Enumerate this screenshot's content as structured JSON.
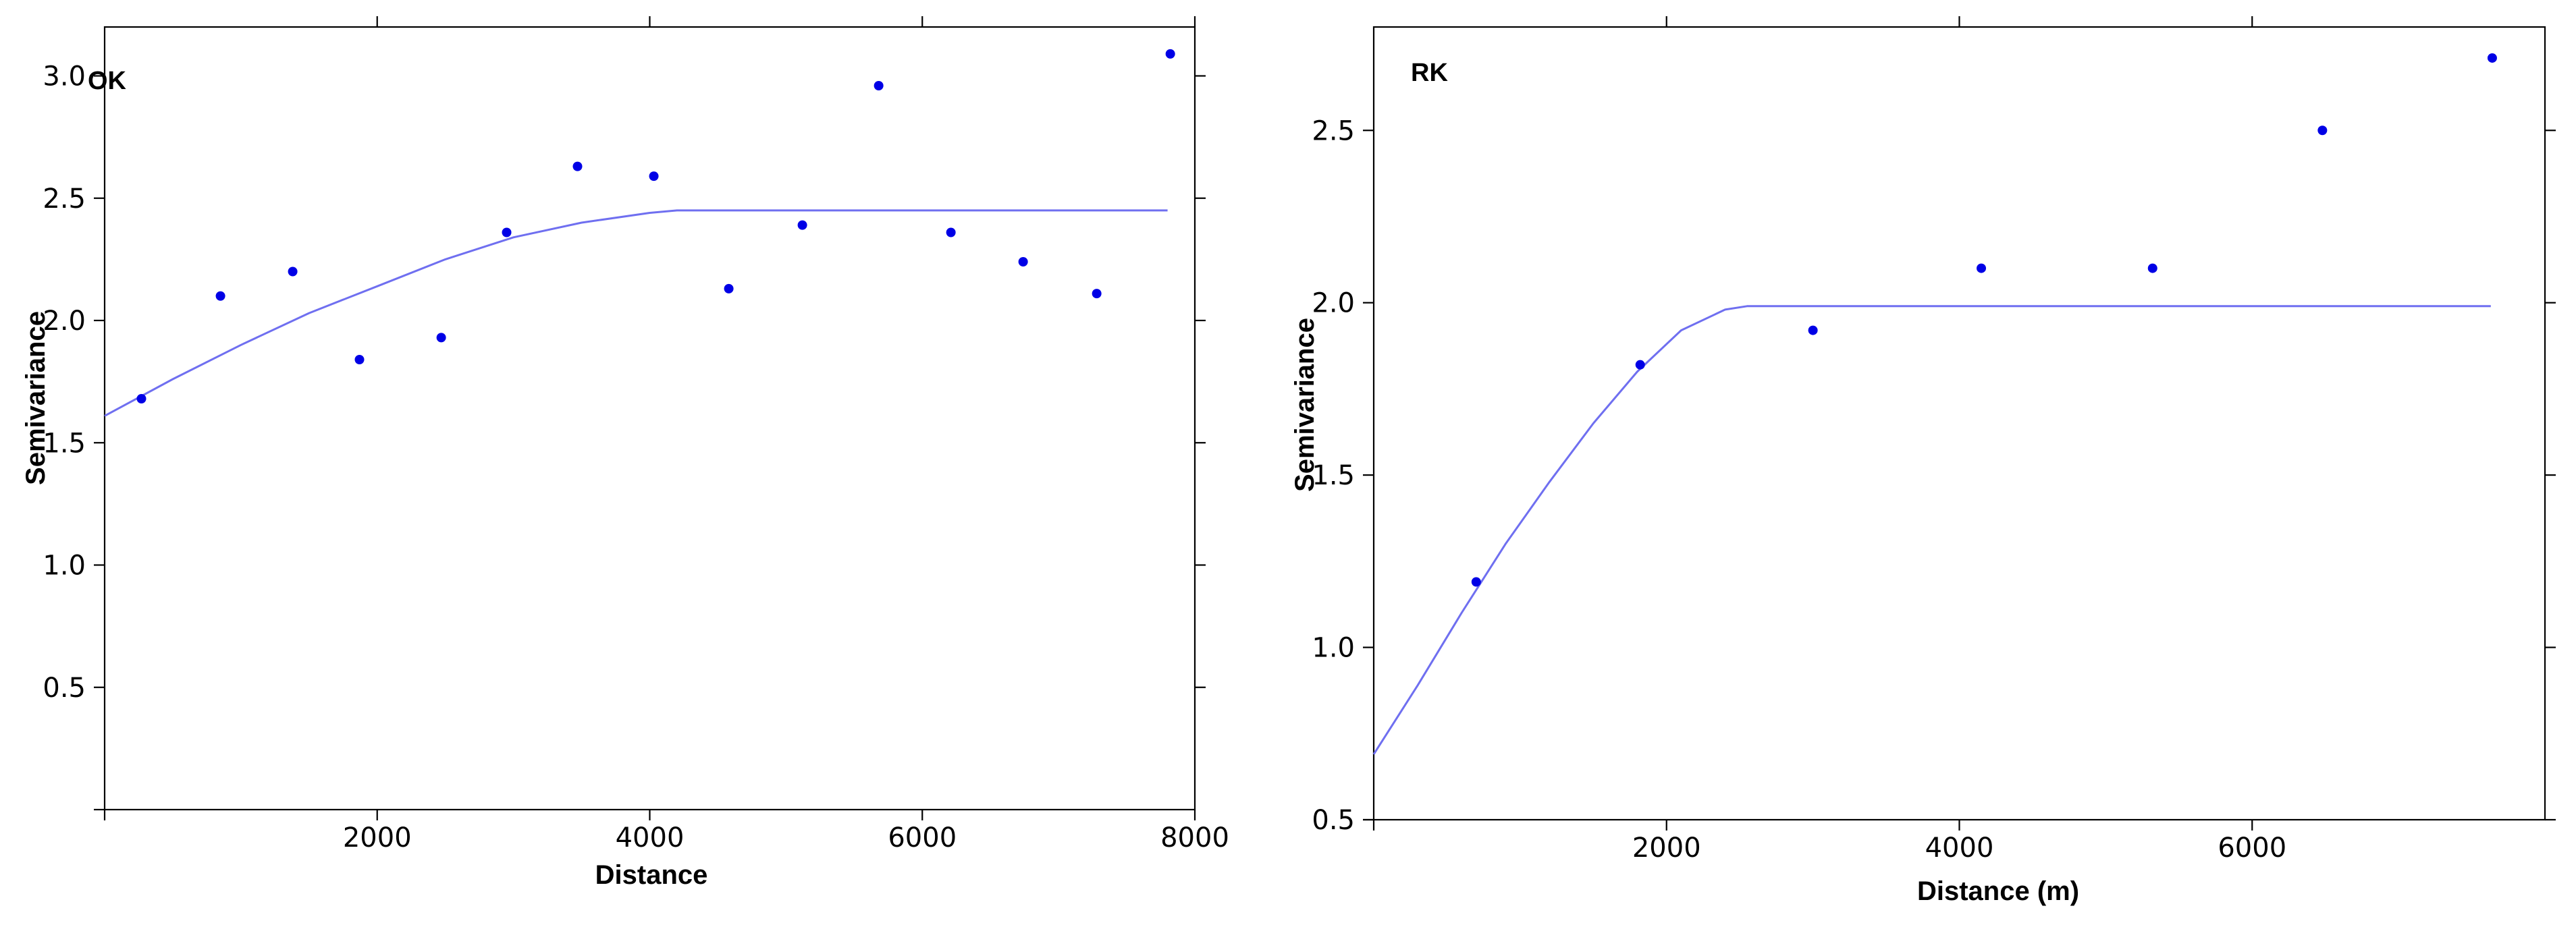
{
  "colors": {
    "line": "#6f6ff0",
    "points": "#0000e6",
    "axes": "#000000"
  },
  "chart_data": [
    {
      "type": "scatter",
      "panel_label": "OK",
      "xlabel": "Distance",
      "ylabel": "Semivariance",
      "xlim": [
        0,
        8000
      ],
      "ylim": [
        0,
        3.2
      ],
      "xticks": [
        2000,
        4000,
        6000,
        8000
      ],
      "xtick_labels": [
        "2000",
        "4000",
        "6000",
        "8000"
      ],
      "yticks": [
        0.5,
        1.0,
        1.5,
        2.0,
        2.5,
        3.0
      ],
      "ytick_labels": [
        "0.5",
        "1.0",
        "1.5",
        "2.0",
        "2.5",
        "3.0"
      ],
      "grid": false,
      "series": [
        {
          "kind": "points",
          "x": [
            270,
            850,
            1380,
            1870,
            2470,
            2950,
            3470,
            4030,
            4580,
            5120,
            5680,
            6210,
            6740,
            7280,
            7820
          ],
          "y": [
            1.68,
            2.1,
            2.2,
            1.84,
            1.93,
            2.36,
            2.63,
            2.59,
            2.13,
            2.39,
            2.96,
            2.36,
            2.24,
            2.11,
            3.09
          ]
        },
        {
          "kind": "model-line",
          "x": [
            0,
            500,
            1000,
            1500,
            2000,
            2500,
            3000,
            3500,
            4000,
            4200,
            5000,
            6000,
            7000,
            7800
          ],
          "y": [
            1.61,
            1.76,
            1.9,
            2.03,
            2.14,
            2.25,
            2.34,
            2.4,
            2.44,
            2.45,
            2.45,
            2.45,
            2.45,
            2.45
          ]
        }
      ]
    },
    {
      "type": "scatter",
      "panel_label": "RK",
      "xlabel": "Distance (m)",
      "ylabel": "Semivariance",
      "xlim": [
        0,
        8000
      ],
      "ylim": [
        0.5,
        2.8
      ],
      "xticks": [
        2000,
        4000,
        6000
      ],
      "xtick_labels": [
        "2000",
        "4000",
        "6000"
      ],
      "yticks": [
        0.5,
        1.0,
        1.5,
        2.0,
        2.5
      ],
      "ytick_labels": [
        "0.5",
        "1.0",
        "1.5",
        "2.0",
        "2.5"
      ],
      "grid": false,
      "series": [
        {
          "kind": "points",
          "x": [
            700,
            1820,
            3000,
            4150,
            5320,
            6480,
            7640
          ],
          "y": [
            1.19,
            1.82,
            1.92,
            2.1,
            2.1,
            2.5,
            2.71
          ]
        },
        {
          "kind": "model-line",
          "x": [
            0,
            300,
            600,
            900,
            1200,
            1500,
            1800,
            2100,
            2400,
            2550,
            3500,
            5000,
            6500,
            7630
          ],
          "y": [
            0.69,
            0.89,
            1.1,
            1.3,
            1.48,
            1.65,
            1.8,
            1.92,
            1.98,
            1.99,
            1.99,
            1.99,
            1.99,
            1.99
          ]
        }
      ]
    }
  ]
}
